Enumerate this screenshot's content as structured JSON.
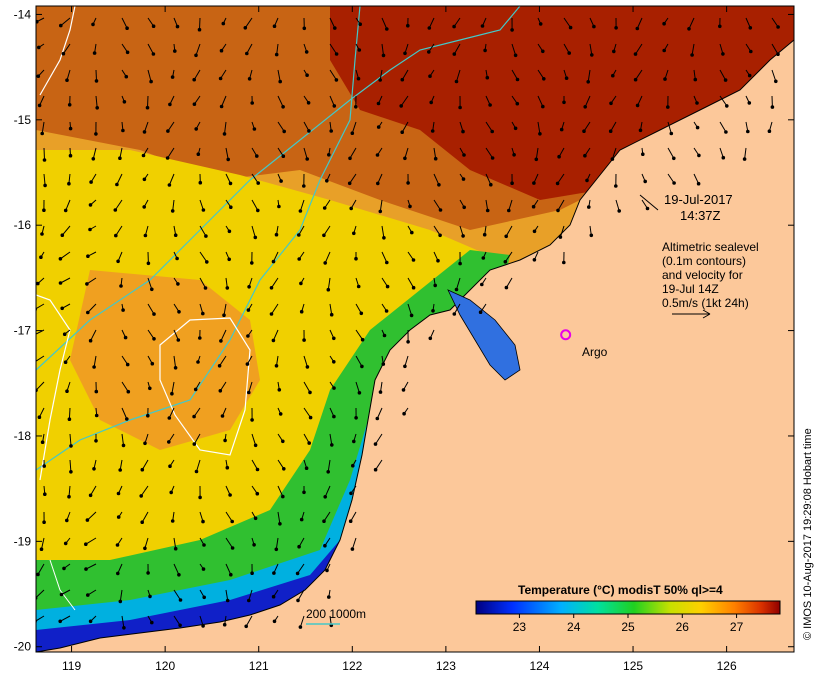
{
  "map": {
    "lon_ticks": [
      "119",
      "120",
      "121",
      "122",
      "123",
      "124",
      "125",
      "126"
    ],
    "lat_ticks": [
      "-14",
      "-15",
      "-16",
      "-17",
      "-18",
      "-19",
      "-20"
    ],
    "lon_values": [
      119,
      120,
      121,
      122,
      123,
      124,
      125,
      126
    ],
    "lat_values": [
      -14,
      -15,
      -16,
      -17,
      -18,
      -19,
      -20
    ],
    "extent": {
      "lon": [
        118.62,
        126.72
      ],
      "lat": [
        -13.92,
        -20.05
      ]
    },
    "date_line1": "19-Jul-2017",
    "date_line2": "14:37Z",
    "legend_text": [
      "Altimetric sealevel",
      "(0.1m contours)",
      "and velocity for",
      "19-Jul 14Z",
      "0.5m/s (1kt 24h)"
    ],
    "argo_label": "Argo",
    "argo_position": {
      "lon": 124.28,
      "lat": -17.04
    },
    "depth_label": "200  1000m",
    "credit": "© IMOS 10-Aug-2017 19:29:08 Hobart time",
    "colors": {
      "land": "#fcc89a",
      "argo": "#e800e8",
      "isobath_200": "#44c8c8",
      "sealevel_contour": "#ffffff"
    }
  },
  "colorbar": {
    "title": "Temperature (°C) modisT 50% ql>=4",
    "tick_labels": [
      "23",
      "24",
      "25",
      "26",
      "27"
    ],
    "tick_values": [
      23,
      24,
      25,
      26,
      27
    ],
    "range": [
      22.2,
      27.8
    ]
  }
}
